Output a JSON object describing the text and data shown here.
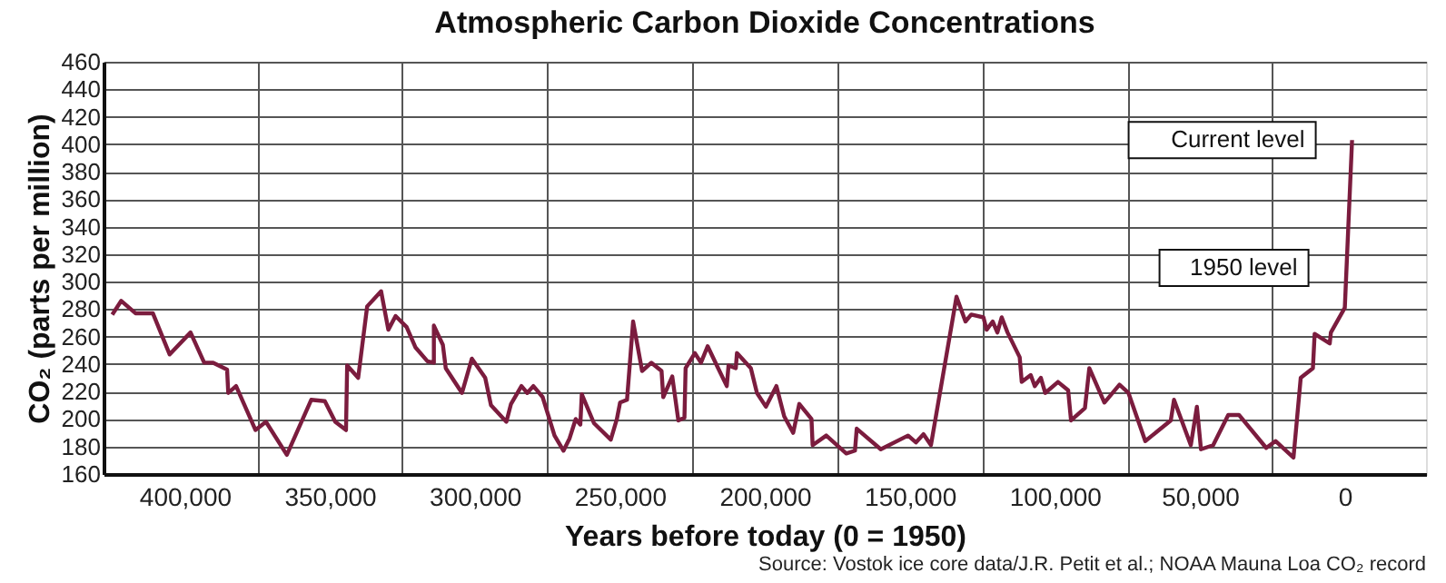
{
  "chart_data": {
    "type": "line",
    "title": "Atmospheric Carbon Dioxide Concentrations",
    "xlabel": "Years before today (0 = 1950)",
    "ylabel": "CO₂ (parts per million)",
    "series": [
      {
        "color": "#7b1c3e",
        "x": [
          425000,
          421900,
          417000,
          411000,
          405200,
          398000,
          393300,
          390200,
          385400,
          385000,
          382300,
          375600,
          372000,
          364800,
          356400,
          351700,
          348100,
          344400,
          344000,
          340200,
          337100,
          332300,
          329800,
          327300,
          323500,
          320400,
          316300,
          314100,
          314100,
          311000,
          310000,
          304400,
          301000,
          296400,
          294400,
          289100,
          287500,
          283900,
          281900,
          279800,
          276600,
          272500,
          269400,
          267300,
          265200,
          263600,
          263100,
          258900,
          253100,
          251000,
          249900,
          247500,
          245400,
          242300,
          239100,
          235600,
          235000,
          231900,
          229800,
          227700,
          227300,
          224100,
          222000,
          219700,
          216300,
          213100,
          212500,
          210000,
          209600,
          204800,
          202700,
          199600,
          196000,
          193300,
          190200,
          188100,
          183900,
          183500,
          178800,
          171900,
          168900,
          168300,
          160000,
          150600,
          147900,
          145300,
          142700,
          133900,
          130800,
          128800,
          124600,
          123500,
          121400,
          119800,
          118300,
          116300,
          112100,
          111400,
          108300,
          106900,
          104800,
          103300,
          98900,
          95400,
          94400,
          89600,
          88100,
          82900,
          77700,
          74600,
          68800,
          60000,
          58900,
          53100,
          51000,
          49600,
          45400,
          40200,
          36500,
          27100,
          23900,
          17700,
          15200,
          11000,
          10400,
          5200,
          4800,
          0,
          -2500
        ],
        "values": [
          276,
          286,
          277,
          277,
          247,
          263,
          241,
          241,
          236,
          219,
          224,
          192,
          198,
          174,
          214,
          213,
          198,
          192,
          239,
          230,
          282,
          293,
          265,
          275,
          267,
          252,
          242,
          241,
          268,
          254,
          237,
          219,
          244,
          230,
          210,
          198,
          211,
          224,
          219,
          224,
          216,
          188,
          177,
          186,
          200,
          196,
          218,
          197,
          185,
          200,
          212,
          214,
          271,
          235,
          241,
          235,
          216,
          231,
          199,
          201,
          237,
          248,
          241,
          253,
          238,
          224,
          239,
          237,
          248,
          237,
          219,
          209,
          224,
          202,
          190,
          211,
          200,
          181,
          188,
          175,
          177,
          193,
          178,
          188,
          183,
          189,
          181,
          289,
          271,
          276,
          274,
          265,
          271,
          263,
          274,
          263,
          245,
          227,
          232,
          224,
          230,
          219,
          227,
          221,
          199,
          208,
          237,
          212,
          225,
          219,
          184,
          199,
          214,
          181,
          209,
          178,
          181,
          203,
          203,
          179,
          184,
          172,
          230,
          237,
          262,
          255,
          263,
          281,
          403
        ]
      }
    ],
    "xlim": [
      428000,
      -28000
    ],
    "xticks": [
      {
        "value": 400000,
        "label": "400,000"
      },
      {
        "value": 375000,
        "label": null
      },
      {
        "value": 350000,
        "label": "350,000"
      },
      {
        "value": 325000,
        "label": null
      },
      {
        "value": 300000,
        "label": "300,000"
      },
      {
        "value": 275000,
        "label": null
      },
      {
        "value": 250000,
        "label": "250,000"
      },
      {
        "value": 225000,
        "label": null
      },
      {
        "value": 200000,
        "label": "200,000"
      },
      {
        "value": 175000,
        "label": null
      },
      {
        "value": 150000,
        "label": "150,000"
      },
      {
        "value": 125000,
        "label": null
      },
      {
        "value": 100000,
        "label": "100,000"
      },
      {
        "value": 75000,
        "label": null
      },
      {
        "value": 50000,
        "label": "50,000"
      },
      {
        "value": 25000,
        "label": null
      },
      {
        "value": 0,
        "label": "0"
      }
    ],
    "ylim": [
      160,
      460
    ],
    "yticks": [
      160,
      180,
      200,
      220,
      240,
      260,
      280,
      300,
      320,
      340,
      360,
      380,
      400,
      420,
      440,
      460
    ],
    "grid": true,
    "line_style": "solid",
    "marker": "none",
    "annotations": [
      {
        "text": "Current level",
        "x": -2500,
        "y": 403
      },
      {
        "text": "1950 level",
        "x": 0,
        "y": 310
      },
      "Source: Vostok ice core data/J.R. Petit et al.; NOAA Mauna Loa CO₂ record"
    ]
  }
}
